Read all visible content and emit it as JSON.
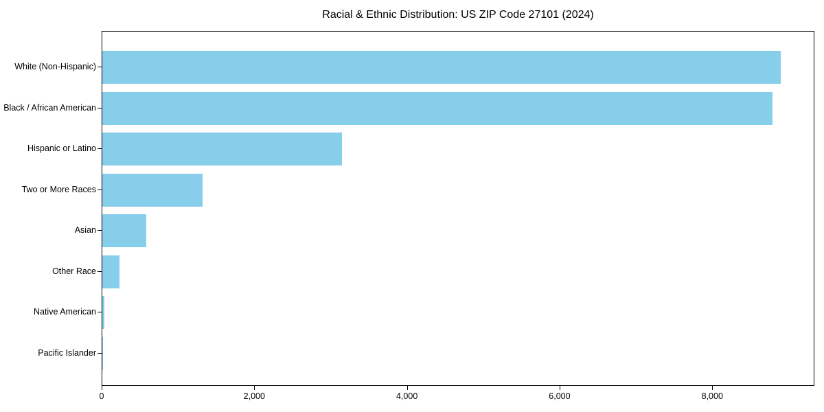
{
  "chart_data": {
    "type": "bar",
    "orientation": "horizontal",
    "title": "Racial & Ethnic Distribution: US ZIP Code 27101 (2024)",
    "categories": [
      "White (Non-Hispanic)",
      "Black / African American",
      "Hispanic or Latino",
      "Two or More Races",
      "Asian",
      "Other Race",
      "Native American",
      "Pacific Islander"
    ],
    "values": [
      8890,
      8780,
      3140,
      1310,
      575,
      225,
      25,
      5
    ],
    "xlabel": "",
    "ylabel": "",
    "xlim": [
      0,
      9320
    ],
    "xticks": {
      "values": [
        0,
        2000,
        4000,
        6000,
        8000
      ],
      "labels": [
        "0",
        "2,000",
        "4,000",
        "6,000",
        "8,000"
      ]
    },
    "bar_color": "#87CEEB",
    "axis_color": "#000000",
    "grid": false,
    "legend": null
  }
}
